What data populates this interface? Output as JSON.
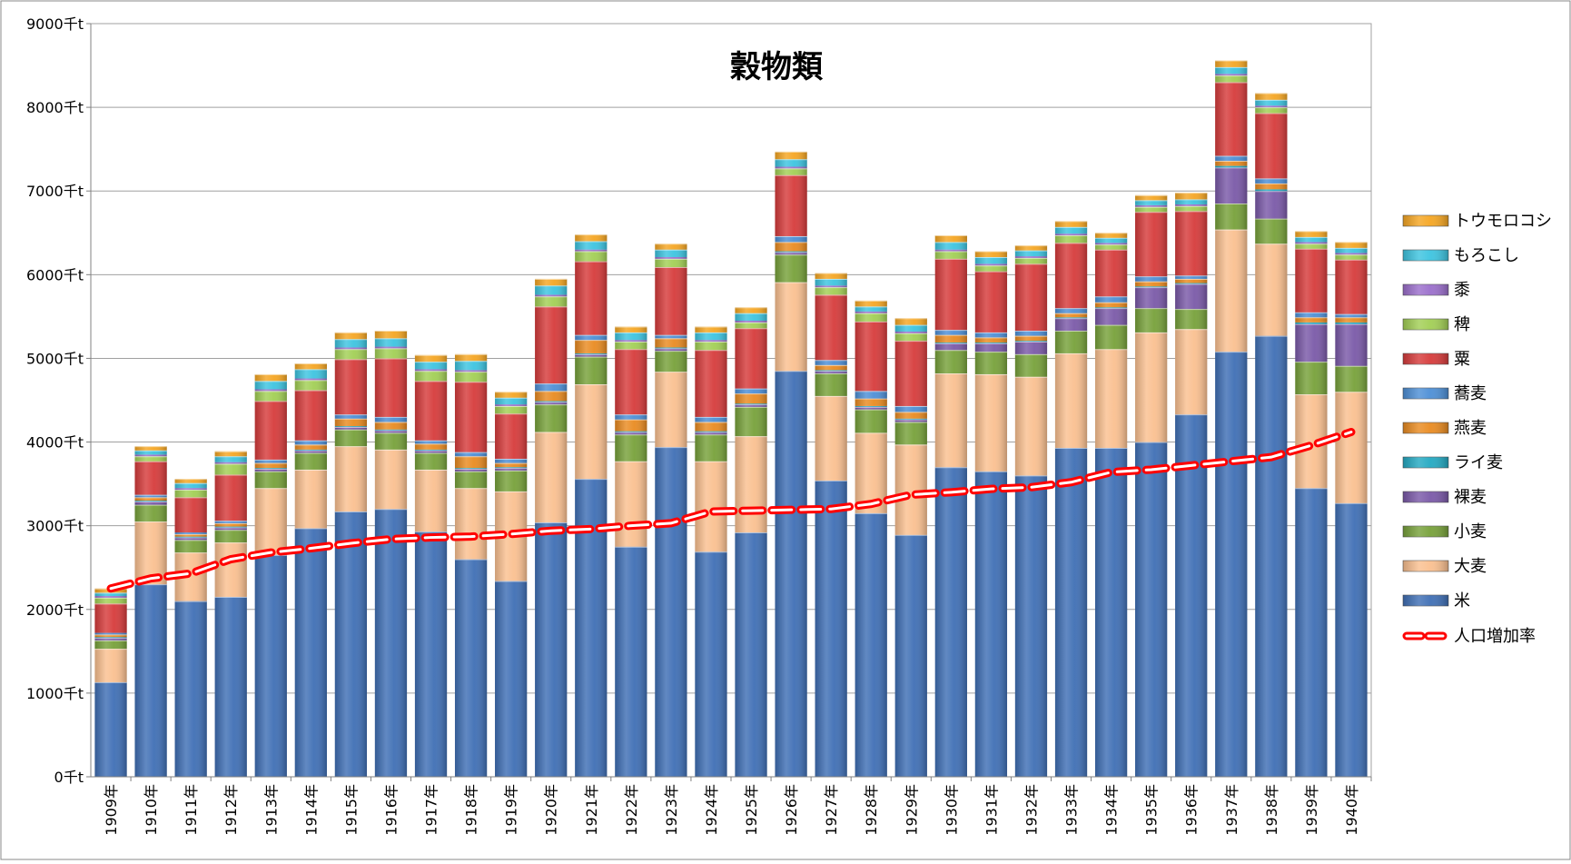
{
  "chart_data": {
    "type": "bar",
    "stacked": true,
    "title": "穀物類",
    "xlabel": "",
    "ylabel": "",
    "ylim": [
      0,
      9000
    ],
    "yticks": [
      0,
      1000,
      2000,
      3000,
      4000,
      5000,
      6000,
      7000,
      8000,
      9000
    ],
    "ytick_suffix": "千t",
    "grid": true,
    "legend_position": "right",
    "categories": [
      "1909年",
      "1910年",
      "1911年",
      "1912年",
      "1913年",
      "1914年",
      "1915年",
      "1916年",
      "1917年",
      "1918年",
      "1919年",
      "1920年",
      "1921年",
      "1922年",
      "1923年",
      "1924年",
      "1925年",
      "1926年",
      "1927年",
      "1928年",
      "1929年",
      "1930年",
      "1931年",
      "1932年",
      "1933年",
      "1934年",
      "1935年",
      "1936年",
      "1937年",
      "1938年",
      "1939年",
      "1940年"
    ],
    "series": [
      {
        "name": "米",
        "color": "#3f6fb5",
        "values": [
          1130,
          2300,
          2100,
          2150,
          2650,
          2970,
          3170,
          3200,
          2930,
          2600,
          2340,
          3040,
          3560,
          2750,
          3940,
          2690,
          2920,
          4850,
          3540,
          3150,
          2890,
          3700,
          3650,
          3600,
          3930,
          3930,
          4000,
          4330,
          5080,
          5270,
          3450,
          3270
        ]
      },
      {
        "name": "大麦",
        "color": "#fac090",
        "values": [
          400,
          750,
          580,
          650,
          800,
          700,
          780,
          710,
          740,
          850,
          1070,
          1080,
          1130,
          1020,
          900,
          1080,
          1150,
          1060,
          1010,
          960,
          1080,
          1120,
          1160,
          1180,
          1130,
          1180,
          1310,
          1020,
          1460,
          1100,
          1120,
          1330
        ]
      },
      {
        "name": "小麦",
        "color": "#77a13a",
        "values": [
          100,
          200,
          150,
          150,
          200,
          200,
          200,
          200,
          200,
          200,
          250,
          330,
          330,
          320,
          250,
          320,
          350,
          330,
          270,
          280,
          270,
          280,
          270,
          270,
          270,
          290,
          290,
          240,
          310,
          300,
          390,
          310
        ]
      },
      {
        "name": "裸麦",
        "color": "#7a59a8",
        "values": [
          30,
          40,
          30,
          30,
          30,
          30,
          30,
          30,
          30,
          30,
          30,
          30,
          30,
          30,
          30,
          30,
          30,
          30,
          30,
          30,
          30,
          80,
          100,
          150,
          150,
          200,
          250,
          300,
          430,
          330,
          450,
          500
        ]
      },
      {
        "name": "ライ麦",
        "color": "#23a9c2",
        "values": [
          10,
          10,
          10,
          10,
          10,
          10,
          10,
          10,
          10,
          10,
          10,
          10,
          10,
          10,
          10,
          10,
          10,
          10,
          10,
          10,
          10,
          10,
          10,
          10,
          10,
          10,
          10,
          10,
          20,
          20,
          20,
          20
        ]
      },
      {
        "name": "燕麦",
        "color": "#e98b21",
        "values": [
          30,
          40,
          30,
          40,
          60,
          60,
          90,
          90,
          70,
          140,
          50,
          120,
          160,
          140,
          110,
          110,
          120,
          110,
          60,
          90,
          80,
          90,
          60,
          60,
          50,
          60,
          60,
          50,
          60,
          70,
          60,
          60
        ]
      },
      {
        "name": "蕎麦",
        "color": "#4d8fd6",
        "values": [
          20,
          30,
          20,
          30,
          40,
          50,
          50,
          60,
          40,
          50,
          50,
          90,
          60,
          60,
          40,
          60,
          60,
          70,
          60,
          90,
          70,
          60,
          60,
          60,
          60,
          70,
          60,
          40,
          60,
          60,
          60,
          40
        ]
      },
      {
        "name": "粟",
        "color": "#d63b3b",
        "values": [
          350,
          400,
          420,
          550,
          700,
          600,
          660,
          700,
          710,
          840,
          540,
          920,
          880,
          780,
          810,
          800,
          720,
          730,
          780,
          830,
          780,
          850,
          730,
          800,
          780,
          560,
          770,
          770,
          880,
          780,
          760,
          650
        ]
      },
      {
        "name": "稗",
        "color": "#a2cf55",
        "values": [
          70,
          60,
          90,
          130,
          120,
          120,
          120,
          120,
          120,
          120,
          90,
          120,
          120,
          90,
          100,
          100,
          70,
          80,
          90,
          100,
          90,
          90,
          70,
          70,
          90,
          60,
          60,
          60,
          80,
          70,
          60,
          60
        ]
      },
      {
        "name": "黍",
        "color": "#9b6fcc",
        "values": [
          20,
          20,
          20,
          20,
          20,
          20,
          20,
          20,
          20,
          20,
          20,
          20,
          20,
          20,
          20,
          20,
          20,
          20,
          20,
          20,
          20,
          20,
          20,
          20,
          20,
          20,
          20,
          20,
          20,
          20,
          20,
          20
        ]
      },
      {
        "name": "もろこし",
        "color": "#3dc4e0",
        "values": [
          40,
          50,
          60,
          70,
          100,
          110,
          100,
          100,
          90,
          110,
          80,
          110,
          100,
          90,
          90,
          90,
          90,
          90,
          80,
          60,
          80,
          90,
          80,
          70,
          80,
          60,
          60,
          60,
          80,
          70,
          60,
          60
        ]
      },
      {
        "name": "トウモロコシ",
        "color": "#f5a623",
        "values": [
          50,
          50,
          50,
          60,
          80,
          70,
          80,
          90,
          80,
          80,
          70,
          80,
          80,
          70,
          70,
          70,
          70,
          90,
          70,
          70,
          80,
          80,
          70,
          60,
          70,
          60,
          60,
          80,
          80,
          80,
          70,
          70
        ]
      }
    ],
    "line_series": {
      "name": "人口増加率",
      "color": "#ff0000",
      "values": [
        2250,
        2370,
        2430,
        2600,
        2680,
        2730,
        2790,
        2840,
        2860,
        2870,
        2900,
        2940,
        2960,
        3000,
        3030,
        3170,
        3180,
        3190,
        3200,
        3260,
        3370,
        3400,
        3440,
        3460,
        3520,
        3640,
        3670,
        3720,
        3770,
        3820,
        3960,
        4120
      ]
    }
  }
}
